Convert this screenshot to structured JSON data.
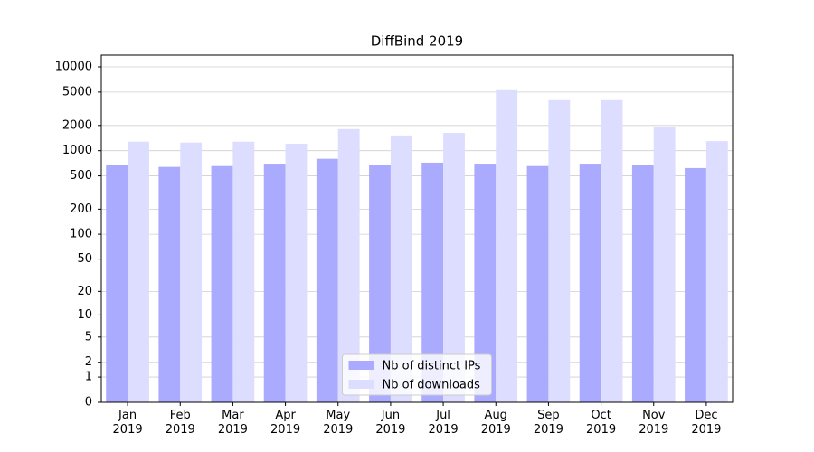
{
  "chart_data": {
    "type": "bar",
    "title": "DiffBind 2019",
    "yscale": "log1p",
    "grid": true,
    "legend": "lower center",
    "categories": [
      "Jan\n2019",
      "Feb\n2019",
      "Mar\n2019",
      "Apr\n2019",
      "May\n2019",
      "Jun\n2019",
      "Jul\n2019",
      "Aug\n2019",
      "Sep\n2019",
      "Oct\n2019",
      "Nov\n2019",
      "Dec\n2019"
    ],
    "series": [
      {
        "name": "Nb of distinct IPs",
        "color": "#aaaaff",
        "values": [
          670,
          640,
          655,
          700,
          800,
          670,
          720,
          700,
          655,
          700,
          670,
          620
        ]
      },
      {
        "name": "Nb of downloads",
        "color": "#ddddff",
        "values": [
          1280,
          1250,
          1280,
          1210,
          1810,
          1520,
          1630,
          5270,
          4010,
          4010,
          1900,
          1300
        ]
      }
    ],
    "ylim": [
      0,
      13800
    ],
    "yticks": [
      0,
      1,
      2,
      5,
      10,
      20,
      50,
      100,
      200,
      500,
      1000,
      2000,
      5000,
      10000
    ]
  }
}
